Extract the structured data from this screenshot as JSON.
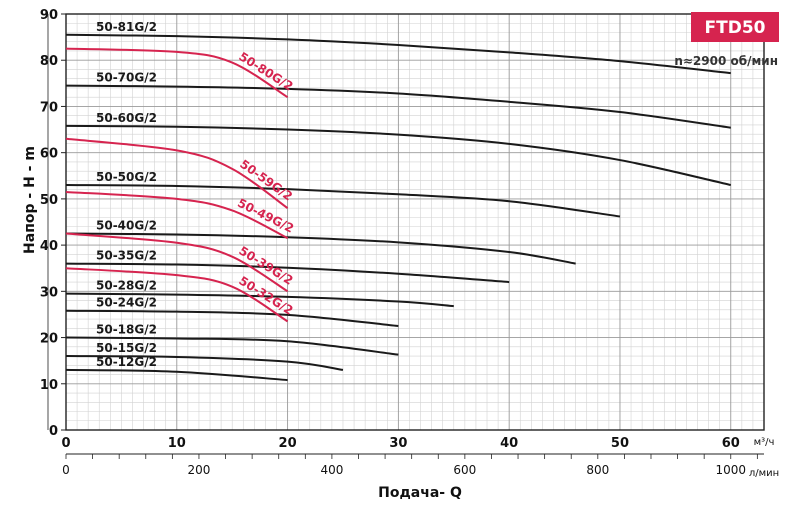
{
  "chart_data": {
    "type": "line",
    "title": "FTD50",
    "subtitle": "n≈2900 об/мин",
    "ylabel": "Напор - H - m",
    "xlabel": "Подача- Q",
    "x_unit_primary": "м³/ч",
    "x_unit_secondary": "л/мин",
    "xlim": [
      0,
      63
    ],
    "ylim": [
      0,
      90
    ],
    "x_ticks": [
      0,
      10,
      20,
      30,
      40,
      50,
      60
    ],
    "x2_ticks": [
      0,
      200,
      400,
      600,
      800,
      1000
    ],
    "y_ticks": [
      0,
      10,
      20,
      30,
      40,
      50,
      60,
      70,
      80,
      90
    ],
    "grid": true,
    "series": [
      {
        "name": "50-81G/2",
        "color": "#1a1a1a",
        "x": [
          0,
          10,
          20,
          30,
          40,
          50,
          60
        ],
        "y": [
          85.5,
          85.2,
          84.5,
          83.3,
          81.7,
          79.8,
          77.2
        ]
      },
      {
        "name": "50-70G/2",
        "color": "#1a1a1a",
        "x": [
          0,
          10,
          20,
          30,
          40,
          50,
          60
        ],
        "y": [
          74.5,
          74.3,
          73.8,
          72.8,
          71.0,
          68.8,
          65.4
        ]
      },
      {
        "name": "50-60G/2",
        "color": "#1a1a1a",
        "x": [
          0,
          10,
          20,
          30,
          40,
          50,
          60
        ],
        "y": [
          65.8,
          65.6,
          65.0,
          63.9,
          61.9,
          58.4,
          53.0
        ]
      },
      {
        "name": "50-50G/2",
        "color": "#1a1a1a",
        "x": [
          0,
          10,
          20,
          30,
          40,
          50
        ],
        "y": [
          53.0,
          52.8,
          52.1,
          51.0,
          49.5,
          46.2
        ]
      },
      {
        "name": "50-40G/2",
        "color": "#1a1a1a",
        "x": [
          0,
          10,
          20,
          30,
          40,
          46
        ],
        "y": [
          42.5,
          42.3,
          41.7,
          40.6,
          38.5,
          36.0
        ]
      },
      {
        "name": "50-35G/2",
        "color": "#1a1a1a",
        "x": [
          0,
          10,
          20,
          30,
          40
        ],
        "y": [
          36.0,
          35.8,
          35.1,
          33.8,
          32.0
        ]
      },
      {
        "name": "50-28G/2",
        "color": "#1a1a1a",
        "x": [
          0,
          10,
          20,
          30,
          35
        ],
        "y": [
          29.5,
          29.3,
          28.8,
          27.8,
          26.8
        ]
      },
      {
        "name": "50-24G/2",
        "color": "#1a1a1a",
        "x": [
          0,
          10,
          20,
          30
        ],
        "y": [
          25.8,
          25.6,
          24.9,
          22.5
        ]
      },
      {
        "name": "50-18G/2",
        "color": "#1a1a1a",
        "x": [
          0,
          10,
          20,
          30
        ],
        "y": [
          20.0,
          19.8,
          19.2,
          16.3
        ]
      },
      {
        "name": "50-15G/2",
        "color": "#1a1a1a",
        "x": [
          0,
          10,
          20,
          25
        ],
        "y": [
          16.0,
          15.8,
          14.8,
          13.0
        ]
      },
      {
        "name": "50-12G/2",
        "color": "#1a1a1a",
        "x": [
          0,
          10,
          20
        ],
        "y": [
          13.0,
          12.6,
          10.8
        ]
      },
      {
        "name": "50-80G/2",
        "color": "#d6244f",
        "x": [
          0,
          10,
          15,
          20
        ],
        "y": [
          82.5,
          81.8,
          79.5,
          72.0
        ]
      },
      {
        "name": "50-59G/2",
        "color": "#d6244f",
        "x": [
          0,
          10,
          15,
          20
        ],
        "y": [
          63.0,
          60.5,
          56.5,
          48.0
        ]
      },
      {
        "name": "50-49G/2",
        "color": "#d6244f",
        "x": [
          0,
          10,
          15,
          20
        ],
        "y": [
          51.5,
          50.0,
          47.5,
          41.5
        ]
      },
      {
        "name": "50-39G/2",
        "color": "#d6244f",
        "x": [
          0,
          10,
          15,
          20
        ],
        "y": [
          42.5,
          40.5,
          37.5,
          30.0
        ]
      },
      {
        "name": "50-32G/2",
        "color": "#d6244f",
        "x": [
          0,
          10,
          15,
          20
        ],
        "y": [
          35.0,
          33.5,
          31.0,
          23.5
        ]
      }
    ]
  },
  "badge": {
    "color": "#d6244f"
  }
}
